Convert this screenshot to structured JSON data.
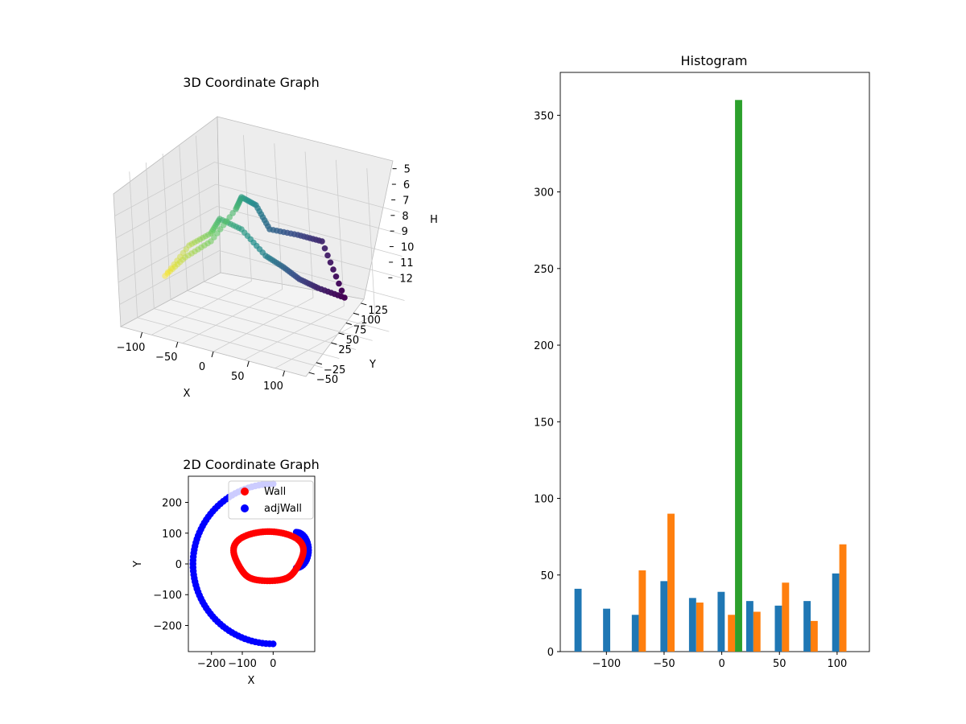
{
  "chart_data": [
    {
      "type": "scatter",
      "projection": "3d",
      "title": "3D Coordinate Graph",
      "xlabel": "X",
      "ylabel": "Y",
      "zlabel": "H",
      "xlim": [
        -130,
        130
      ],
      "ylim": [
        -60,
        135
      ],
      "zlim": [
        12.5,
        4.5
      ],
      "xticks": [
        -100,
        -50,
        0,
        50,
        100
      ],
      "yticks": [
        -50,
        -25,
        25,
        50,
        75,
        100,
        125
      ],
      "zticks": [
        5,
        6,
        7,
        8,
        9,
        10,
        11,
        12
      ],
      "zticks_inverted": true,
      "colormap": "viridis",
      "grid": true
    },
    {
      "type": "scatter",
      "title": "2D Coordinate Graph",
      "xlabel": "X",
      "ylabel": "Y",
      "xlim": [
        -275,
        135
      ],
      "ylim": [
        -285,
        285
      ],
      "xticks": [
        -200,
        -100,
        0
      ],
      "yticks": [
        -200,
        -100,
        0,
        100,
        200
      ],
      "legend": "top-right",
      "series": [
        {
          "name": "Wall",
          "color": "#ff0000"
        },
        {
          "name": "adjWall",
          "color": "#0000ff"
        }
      ]
    },
    {
      "type": "bar",
      "title": "Histogram",
      "xlim": [
        -140,
        128
      ],
      "ylim": [
        0,
        378
      ],
      "xticks": [
        -100,
        -50,
        0,
        50,
        100
      ],
      "yticks": [
        0,
        50,
        100,
        150,
        200,
        250,
        300,
        350
      ],
      "bar_width": 6.2,
      "series": [
        {
          "color": "#1f77b4",
          "bars": [
            [
              -124.6,
              41
            ],
            [
              -99.8,
              28
            ],
            [
              -74.9,
              24
            ],
            [
              -50.1,
              46
            ],
            [
              -25.3,
              35
            ],
            [
              -0.5,
              39
            ],
            [
              24.3,
              33
            ],
            [
              49.1,
              30
            ],
            [
              74.0,
              33
            ],
            [
              98.8,
              51
            ]
          ]
        },
        {
          "color": "#ff7f0e",
          "bars": [
            [
              -68.9,
              53
            ],
            [
              -44.0,
              90
            ],
            [
              -19.0,
              32
            ],
            [
              8.4,
              24
            ],
            [
              30.5,
              26
            ],
            [
              55.3,
              45
            ],
            [
              80.1,
              20
            ],
            [
              105.0,
              70
            ]
          ]
        },
        {
          "color": "#2ca02c",
          "bars": [
            [
              14.6,
              360
            ]
          ]
        }
      ]
    }
  ]
}
